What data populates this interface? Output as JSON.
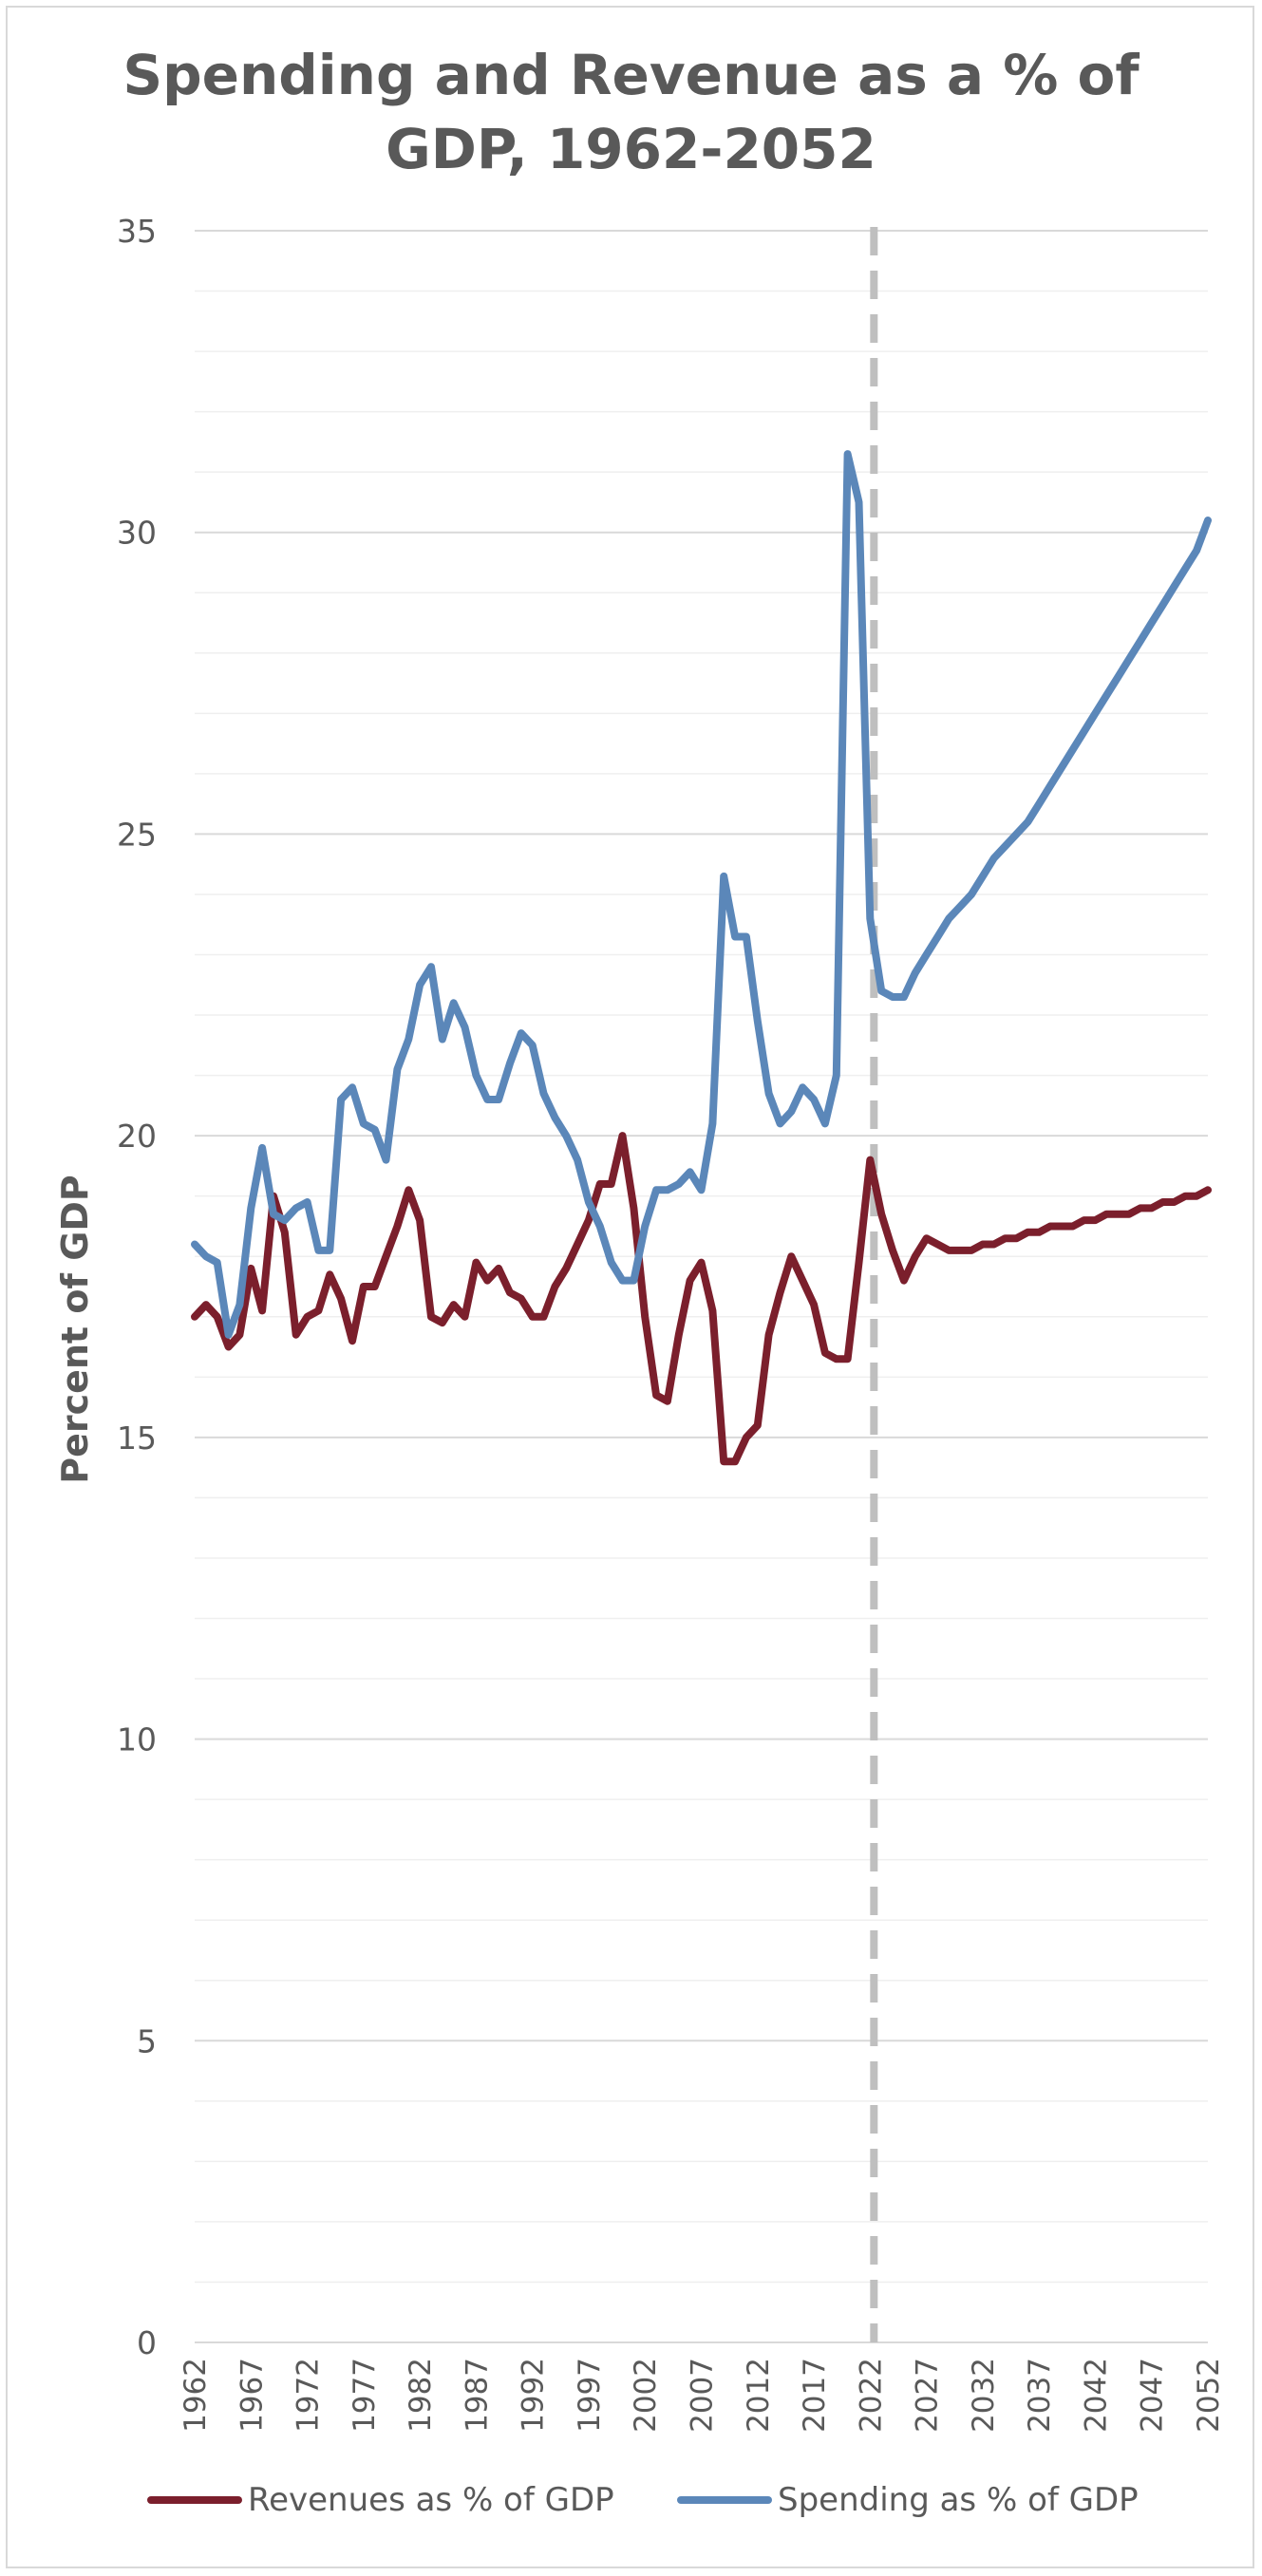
{
  "title_lines": [
    "Spending and Revenue as a % of",
    "GDP, 1962-2052"
  ],
  "colors": {
    "revenue": "#7b1f2c",
    "spending": "#5b87b9",
    "grid": "#d9d9d9",
    "minor_grid": "#efefef",
    "divider": "#bfbfbf"
  },
  "chart_data": {
    "type": "line",
    "title": "Spending and Revenue as a % of GDP, 1962-2052",
    "xlabel": "",
    "ylabel": "Percent of GDP",
    "ylim": [
      0,
      35
    ],
    "yticks": [
      0,
      5,
      10,
      15,
      20,
      25,
      30,
      35
    ],
    "xticks": [
      1962,
      1967,
      1972,
      1977,
      1982,
      1987,
      1992,
      1997,
      2002,
      2007,
      2012,
      2017,
      2022,
      2027,
      2032,
      2037,
      2042,
      2047,
      2052
    ],
    "minor_grid": true,
    "projection_divider_year": 2022,
    "legend_position": "bottom",
    "x_start": 1962,
    "series": [
      {
        "name": "Revenues as % of GDP",
        "values": [
          17.0,
          17.2,
          17.0,
          16.5,
          16.7,
          17.8,
          17.1,
          19.0,
          18.4,
          16.7,
          17.0,
          17.1,
          17.7,
          17.3,
          16.6,
          17.5,
          17.5,
          18.0,
          18.5,
          19.1,
          18.6,
          17.0,
          16.9,
          17.2,
          17.0,
          17.9,
          17.6,
          17.8,
          17.4,
          17.3,
          17.0,
          17.0,
          17.5,
          17.8,
          18.2,
          18.6,
          19.2,
          19.2,
          20.0,
          18.8,
          17.0,
          15.7,
          15.6,
          16.7,
          17.6,
          17.9,
          17.1,
          14.6,
          14.6,
          15.0,
          15.2,
          16.7,
          17.4,
          18.0,
          17.6,
          17.2,
          16.4,
          16.3,
          16.3,
          17.9,
          19.6,
          18.7,
          18.1,
          17.6,
          18.0,
          18.3,
          18.2,
          18.1,
          18.1,
          18.1,
          18.2,
          18.2,
          18.3,
          18.3,
          18.4,
          18.4,
          18.5,
          18.5,
          18.5,
          18.6,
          18.6,
          18.7,
          18.7,
          18.7,
          18.8,
          18.8,
          18.9,
          18.9,
          19.0,
          19.0,
          19.1
        ]
      },
      {
        "name": "Spending as % of GDP",
        "values": [
          18.2,
          18.0,
          17.9,
          16.7,
          17.2,
          18.8,
          19.8,
          18.7,
          18.6,
          18.8,
          18.9,
          18.1,
          18.1,
          20.6,
          20.8,
          20.2,
          20.1,
          19.6,
          21.1,
          21.6,
          22.5,
          22.8,
          21.6,
          22.2,
          21.8,
          21.0,
          20.6,
          20.6,
          21.2,
          21.7,
          21.5,
          20.7,
          20.3,
          20.0,
          19.6,
          18.9,
          18.5,
          17.9,
          17.6,
          17.6,
          18.5,
          19.1,
          19.1,
          19.2,
          19.4,
          19.1,
          20.2,
          24.3,
          23.3,
          23.3,
          21.9,
          20.7,
          20.2,
          20.4,
          20.8,
          20.6,
          20.2,
          21.0,
          31.3,
          30.5,
          23.6,
          22.4,
          22.3,
          22.3,
          22.7,
          23.0,
          23.3,
          23.6,
          23.8,
          24.0,
          24.3,
          24.6,
          24.8,
          25.0,
          25.2,
          25.5,
          25.8,
          26.1,
          26.4,
          26.7,
          27.0,
          27.3,
          27.6,
          27.9,
          28.2,
          28.5,
          28.8,
          29.1,
          29.4,
          29.7,
          30.2
        ]
      }
    ]
  }
}
